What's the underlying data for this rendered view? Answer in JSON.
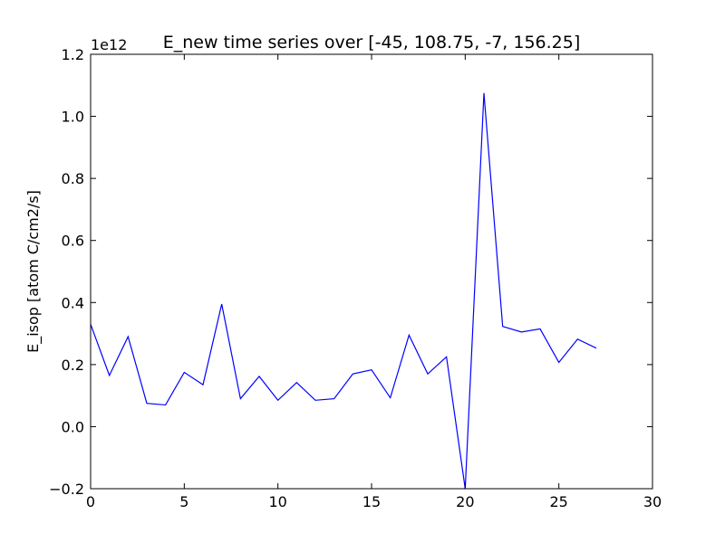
{
  "chart_data": {
    "type": "line",
    "title": "E_new time series over [-45, 108.75, -7, 156.25]",
    "xlabel": "",
    "ylabel": "E_isop [atom C/cm2/s]",
    "y_offset_label": "1e12",
    "xlim": [
      0,
      30
    ],
    "ylim": [
      -0.2,
      1.2
    ],
    "x_ticks": [
      0,
      5,
      10,
      15,
      20,
      25,
      30
    ],
    "x_tick_labels": [
      "0",
      "5",
      "10",
      "15",
      "20",
      "25",
      "30"
    ],
    "y_ticks": [
      -0.2,
      0.0,
      0.2,
      0.4,
      0.6,
      0.8,
      1.0,
      1.2
    ],
    "y_tick_labels": [
      "−0.2",
      "0.0",
      "0.2",
      "0.4",
      "0.6",
      "0.8",
      "1.0",
      "1.2"
    ],
    "grid": false,
    "series": [
      {
        "name": "E_new",
        "color": "#0000ff",
        "x": [
          0,
          1,
          2,
          3,
          4,
          5,
          6,
          7,
          8,
          9,
          10,
          11,
          12,
          13,
          14,
          15,
          16,
          17,
          18,
          19,
          20,
          21,
          22,
          23,
          24,
          25,
          26,
          27
        ],
        "values": [
          0.33,
          0.165,
          0.29,
          0.075,
          0.07,
          0.175,
          0.135,
          0.395,
          0.09,
          0.162,
          0.085,
          0.142,
          0.085,
          0.09,
          0.17,
          0.183,
          0.093,
          0.295,
          0.17,
          0.225,
          -0.2,
          1.075,
          0.323,
          0.305,
          0.315,
          0.207,
          0.282,
          0.253
        ]
      }
    ]
  }
}
